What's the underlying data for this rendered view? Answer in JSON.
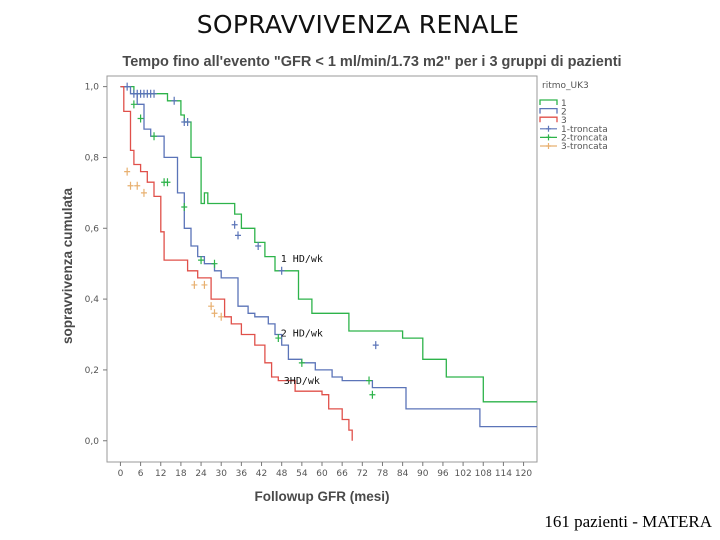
{
  "slide": {
    "title": "SOPRAVVIVENZA RENALE",
    "footer": "161 pazienti  -  MATERA"
  },
  "chart_data": {
    "type": "line",
    "subtype": "kaplan-meier",
    "title": "Tempo fino all'evento \"GFR < 1 ml/min/1.73 m2\" per i 3 gruppi di pazienti",
    "xlabel": "Followup GFR (mesi)",
    "ylabel": "sopravvivenza cumulata",
    "xlim": [
      -4,
      124
    ],
    "ylim": [
      -0.06,
      1.03
    ],
    "x_ticks": [
      0,
      6,
      12,
      18,
      24,
      30,
      36,
      42,
      48,
      54,
      60,
      66,
      72,
      78,
      84,
      90,
      96,
      102,
      108,
      114,
      120
    ],
    "y_ticks": [
      0.0,
      0.2,
      0.4,
      0.6,
      0.8,
      1.0
    ],
    "y_tick_labels": [
      "0,0",
      "0,2",
      "0,4",
      "0,6",
      "0,8",
      "1,0"
    ],
    "legend_title": "ritmo_UK3",
    "legend_position": "right",
    "legend": [
      {
        "label": "1",
        "color": "#2db34a",
        "kind": "line"
      },
      {
        "label": "2",
        "color": "#5b74b8",
        "kind": "line"
      },
      {
        "label": "3",
        "color": "#e0504a",
        "kind": "line"
      },
      {
        "label": "1-troncata",
        "color": "#5b74b8",
        "kind": "censor"
      },
      {
        "label": "2-troncata",
        "color": "#2db34a",
        "kind": "censor"
      },
      {
        "label": "3-troncata",
        "color": "#e8b070",
        "kind": "censor"
      }
    ],
    "series": [
      {
        "name": "1",
        "color": "#2db34a",
        "steps": [
          [
            0,
            1.0
          ],
          [
            4,
            0.98
          ],
          [
            8,
            0.98
          ],
          [
            12,
            0.98
          ],
          [
            14,
            0.96
          ],
          [
            18,
            0.92
          ],
          [
            19,
            0.9
          ],
          [
            21,
            0.8
          ],
          [
            24,
            0.67
          ],
          [
            25,
            0.7
          ],
          [
            26,
            0.67
          ],
          [
            28,
            0.67
          ],
          [
            34,
            0.64
          ],
          [
            36,
            0.6
          ],
          [
            40,
            0.56
          ],
          [
            43,
            0.52
          ],
          [
            46,
            0.48
          ],
          [
            50,
            0.48
          ],
          [
            53,
            0.4
          ],
          [
            57,
            0.36
          ],
          [
            63,
            0.36
          ],
          [
            68,
            0.31
          ],
          [
            76,
            0.31
          ],
          [
            84,
            0.29
          ],
          [
            90,
            0.23
          ],
          [
            96,
            0.23
          ],
          [
            97,
            0.18
          ],
          [
            107,
            0.18
          ],
          [
            108,
            0.11
          ],
          [
            126,
            0.11
          ]
        ]
      },
      {
        "name": "2",
        "color": "#5b74b8",
        "steps": [
          [
            0,
            1.0
          ],
          [
            3,
            0.98
          ],
          [
            5,
            0.95
          ],
          [
            7,
            0.88
          ],
          [
            9,
            0.86
          ],
          [
            12,
            0.86
          ],
          [
            13,
            0.8
          ],
          [
            17,
            0.7
          ],
          [
            19,
            0.6
          ],
          [
            21,
            0.55
          ],
          [
            23,
            0.52
          ],
          [
            25,
            0.5
          ],
          [
            28,
            0.48
          ],
          [
            30,
            0.46
          ],
          [
            35,
            0.38
          ],
          [
            38,
            0.36
          ],
          [
            40,
            0.35
          ],
          [
            44,
            0.33
          ],
          [
            46,
            0.3
          ],
          [
            48,
            0.27
          ],
          [
            50,
            0.23
          ],
          [
            54,
            0.22
          ],
          [
            58,
            0.2
          ],
          [
            60,
            0.2
          ],
          [
            63,
            0.18
          ],
          [
            66,
            0.17
          ],
          [
            74,
            0.17
          ],
          [
            75,
            0.15
          ],
          [
            84,
            0.15
          ],
          [
            85,
            0.09
          ],
          [
            88,
            0.09
          ],
          [
            102,
            0.09
          ],
          [
            107,
            0.04
          ],
          [
            126,
            0.04
          ]
        ]
      },
      {
        "name": "3",
        "color": "#e0504a",
        "steps": [
          [
            0,
            1.0
          ],
          [
            1,
            0.93
          ],
          [
            3,
            0.82
          ],
          [
            4,
            0.78
          ],
          [
            6,
            0.76
          ],
          [
            8,
            0.73
          ],
          [
            10,
            0.69
          ],
          [
            12,
            0.59
          ],
          [
            13,
            0.51
          ],
          [
            18,
            0.51
          ],
          [
            20,
            0.48
          ],
          [
            23,
            0.46
          ],
          [
            27,
            0.4
          ],
          [
            31,
            0.35
          ],
          [
            33,
            0.33
          ],
          [
            36,
            0.3
          ],
          [
            40,
            0.27
          ],
          [
            43,
            0.22
          ],
          [
            45,
            0.18
          ],
          [
            47,
            0.17
          ],
          [
            52,
            0.14
          ],
          [
            56,
            0.14
          ],
          [
            60,
            0.13
          ],
          [
            62,
            0.09
          ],
          [
            66,
            0.06
          ],
          [
            68,
            0.03
          ],
          [
            69,
            0.0
          ]
        ]
      }
    ],
    "censored": [
      {
        "series": "1-troncata",
        "color": "#5b74b8",
        "points": [
          [
            2,
            1.0
          ],
          [
            4,
            0.98
          ],
          [
            5,
            0.98
          ],
          [
            6,
            0.98
          ],
          [
            7,
            0.98
          ],
          [
            8,
            0.98
          ],
          [
            9,
            0.98
          ],
          [
            10,
            0.98
          ],
          [
            16,
            0.96
          ],
          [
            19,
            0.9
          ],
          [
            20,
            0.9
          ],
          [
            34,
            0.61
          ],
          [
            35,
            0.58
          ],
          [
            41,
            0.55
          ],
          [
            48,
            0.48
          ],
          [
            76,
            0.27
          ]
        ]
      },
      {
        "series": "2-troncata",
        "color": "#2db34a",
        "points": [
          [
            4,
            0.95
          ],
          [
            6,
            0.91
          ],
          [
            10,
            0.86
          ],
          [
            13,
            0.73
          ],
          [
            14,
            0.73
          ],
          [
            19,
            0.66
          ],
          [
            24,
            0.51
          ],
          [
            28,
            0.5
          ],
          [
            47,
            0.29
          ],
          [
            54,
            0.22
          ],
          [
            74,
            0.17
          ],
          [
            75,
            0.13
          ]
        ]
      },
      {
        "series": "3-troncata",
        "color": "#e8b070",
        "points": [
          [
            2,
            0.76
          ],
          [
            3,
            0.72
          ],
          [
            5,
            0.72
          ],
          [
            7,
            0.7
          ],
          [
            22,
            0.44
          ],
          [
            25,
            0.44
          ],
          [
            27,
            0.38
          ],
          [
            28,
            0.36
          ],
          [
            30,
            0.35
          ]
        ]
      }
    ],
    "annotations": [
      {
        "text": "1 HD/wk",
        "x": 54,
        "y": 0.505
      },
      {
        "text": "2  HD/wk",
        "x": 54,
        "y": 0.295
      },
      {
        "text": "3HD/wk",
        "x": 54,
        "y": 0.16
      }
    ]
  }
}
